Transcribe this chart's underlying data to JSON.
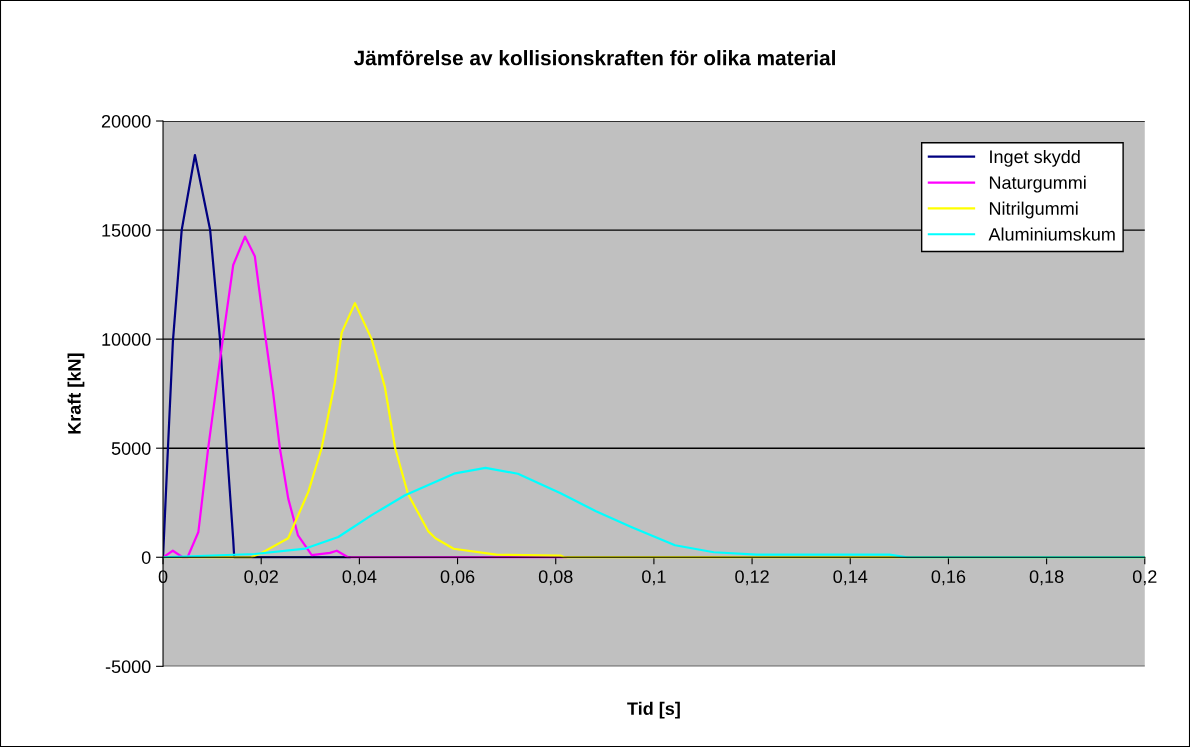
{
  "chart_data": {
    "type": "line",
    "title": "Jämförelse av kollisionskraften för olika material",
    "xlabel": "Tid [s]",
    "ylabel": "Kraft [kN]",
    "xlim": [
      0,
      0.2
    ],
    "xticks": [
      0,
      {
        "value": 0.02,
        "label": "0,02"
      },
      {
        "value": 0.04,
        "label": "0,04"
      },
      {
        "value": 0.06,
        "label": "0,06"
      },
      {
        "value": 0.08,
        "label": "0,08"
      },
      {
        "value": 0.1,
        "label": "0,1"
      },
      {
        "value": 0.12,
        "label": "0,12"
      },
      {
        "value": 0.14,
        "label": "0,14"
      },
      {
        "value": 0.16,
        "label": "0,16"
      },
      {
        "value": 0.18,
        "label": "0,18"
      },
      {
        "value": 0.2,
        "label": "0,2"
      }
    ],
    "ylim": [
      -5000,
      20000
    ],
    "yticks": [
      {
        "value": -5000,
        "label": "-5000"
      },
      0,
      5000,
      10000,
      15000,
      20000
    ],
    "grid": "y",
    "legend": "top right",
    "marker": "none",
    "line_style": "solid",
    "series": [
      {
        "name": "Inget skydd",
        "color": "#000080",
        "x": [
          0,
          0.001,
          0.002,
          0.0038,
          0.0065,
          0.0096,
          0.0116,
          0.013,
          0.0143,
          0.0145,
          0.038
        ],
        "values": [
          0,
          5000,
          9860,
          15000,
          18440,
          15000,
          10000,
          5000,
          800,
          0,
          0
        ]
      },
      {
        "name": "Naturgummi",
        "color": "#ff00ff",
        "x": [
          0,
          0.002,
          0.004,
          0.005,
          0.0072,
          0.0092,
          0.012,
          0.0143,
          0.0167,
          0.0187,
          0.0208,
          0.0224,
          0.0238,
          0.0255,
          0.0275,
          0.0303,
          0.034,
          0.0354,
          0.0377,
          0.082
        ],
        "values": [
          0,
          300,
          0,
          0,
          1160,
          5000,
          9700,
          13400,
          14700,
          13800,
          10200,
          7600,
          5000,
          2700,
          1000,
          100,
          200,
          300,
          0,
          0
        ]
      },
      {
        "name": "Nitrilgummi",
        "color": "#ffff00",
        "x": [
          0,
          0.018,
          0.0201,
          0.0255,
          0.0296,
          0.0323,
          0.035,
          0.0364,
          0.0391,
          0.0425,
          0.0452,
          0.0473,
          0.0499,
          0.054,
          0.0555,
          0.0592,
          0.0679,
          0.081,
          0.0817,
          0.2
        ],
        "values": [
          0,
          0,
          200,
          870,
          3000,
          5000,
          8000,
          10300,
          11650,
          10000,
          7800,
          5000,
          2900,
          1200,
          870,
          390,
          120,
          80,
          0,
          0
        ]
      },
      {
        "name": "Aluminiumskum",
        "color": "#00ffff",
        "x": [
          0,
          0.0187,
          0.029,
          0.0357,
          0.0425,
          0.0493,
          0.0595,
          0.0657,
          0.0723,
          0.081,
          0.0882,
          0.0955,
          0.1043,
          0.1122,
          0.121,
          0.148,
          0.1516,
          0.2
        ],
        "values": [
          0,
          150,
          400,
          930,
          1930,
          2840,
          3850,
          4100,
          3830,
          2930,
          2110,
          1380,
          550,
          230,
          120,
          120,
          0,
          0
        ]
      }
    ]
  }
}
